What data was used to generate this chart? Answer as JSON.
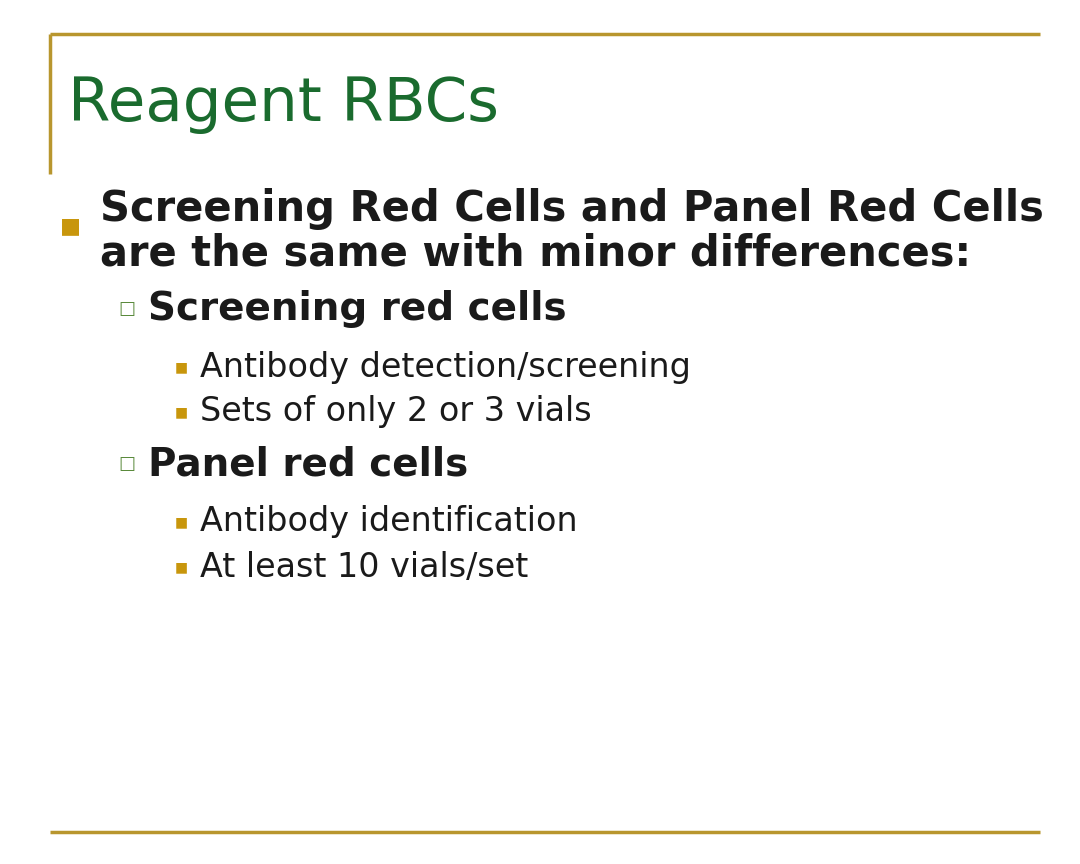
{
  "title": "Reagent RBCs",
  "title_color": "#1a6b2e",
  "title_fontsize": 44,
  "title_fontstyle": "normal",
  "background_color": "#ffffff",
  "border_color": "#b8962e",
  "bullet1_text_line1": "Screening Red Cells and Panel Red Cells",
  "bullet1_text_line2": "are the same with minor differences:",
  "bullet1_color": "#1a1a1a",
  "bullet1_fontsize": 30,
  "bullet1_marker_color": "#c8960c",
  "sub_bullet1_title": "Screening red cells",
  "sub_bullet1_fontsize": 28,
  "sub_bullet1_color": "#1a1a1a",
  "sub_bullet1_marker_color": "#5a8a3c",
  "sub_bullet1_items": [
    "Antibody detection/screening",
    "Sets of only 2 or 3 vials"
  ],
  "sub_bullet2_title": "Panel red cells",
  "sub_bullet2_fontsize": 28,
  "sub_bullet2_color": "#1a1a1a",
  "sub_bullet2_marker_color": "#5a8a3c",
  "sub_bullet2_items": [
    "Antibody identification",
    "At least 10 vials/set"
  ],
  "item_fontsize": 24,
  "item_color": "#1a1a1a",
  "item_marker_color": "#c8960c"
}
